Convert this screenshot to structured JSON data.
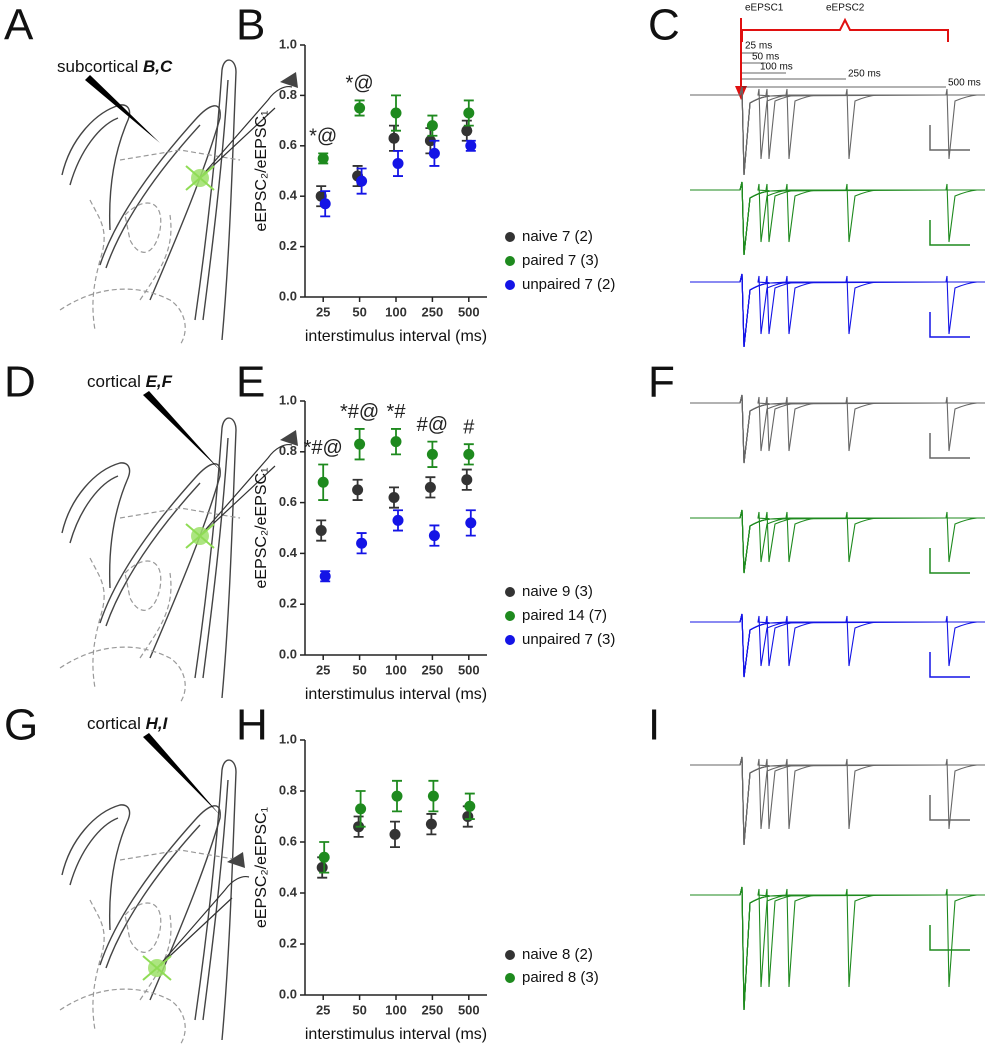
{
  "panels": {
    "letters": [
      "A",
      "B",
      "C",
      "D",
      "E",
      "F",
      "G",
      "H",
      "I"
    ],
    "electrodes": [
      {
        "site": "subcortical",
        "targets": "B,C"
      },
      {
        "site": "cortical",
        "targets": "E,F"
      },
      {
        "site": "cortical",
        "targets": "H,I"
      }
    ],
    "trace_labels": {
      "first": "eEPSC1",
      "second": "eEPSC2",
      "intervals": [
        "25 ms",
        "50 ms",
        "100 ms",
        "250 ms",
        "500 ms"
      ]
    }
  },
  "chart_data": [
    {
      "type": "scatter",
      "categories": [
        "25",
        "50",
        "100",
        "250",
        "500"
      ],
      "xlabel": "interstimulus interval (ms)",
      "ylabel": "eEPSC₂/eEPSC₁",
      "ylim": [
        0,
        1
      ],
      "yticks": [
        {
          "value": 0,
          "label": "0.0"
        },
        0.2,
        0.4,
        0.6,
        0.8,
        {
          "value": 1,
          "label": "1.0"
        }
      ],
      "legend": "lower right",
      "series": [
        {
          "name": "naive 7 (2)",
          "color": "#333333",
          "values": [
            0.4,
            0.48,
            0.63,
            0.62,
            0.66
          ],
          "errors": [
            0.04,
            0.04,
            0.05,
            0.05,
            0.04
          ]
        },
        {
          "name": "paired 7 (3)",
          "color": "#1e8a1e",
          "values": [
            0.55,
            0.75,
            0.73,
            0.68,
            0.73
          ],
          "errors": [
            0.02,
            0.03,
            0.07,
            0.04,
            0.05
          ]
        },
        {
          "name": "unpaired 7 (2)",
          "color": "#1414e6",
          "values": [
            0.37,
            0.46,
            0.53,
            0.57,
            0.6
          ],
          "errors": [
            0.05,
            0.05,
            0.05,
            0.05,
            0.02
          ]
        }
      ],
      "annotations": [
        "*@",
        "*@",
        null,
        null,
        null
      ]
    },
    {
      "type": "scatter",
      "categories": [
        "25",
        "50",
        "100",
        "250",
        "500"
      ],
      "xlabel": "interstimulus interval (ms)",
      "ylabel": "eEPSC₂/eEPSC₁",
      "ylim": [
        0,
        1
      ],
      "yticks": [
        {
          "value": 0,
          "label": "0.0"
        },
        0.2,
        0.4,
        0.6,
        0.8,
        {
          "value": 1,
          "label": "1.0"
        }
      ],
      "legend": "lower right",
      "series": [
        {
          "name": "naive 9 (3)",
          "color": "#333333",
          "values": [
            0.49,
            0.65,
            0.62,
            0.66,
            0.69
          ],
          "errors": [
            0.04,
            0.04,
            0.04,
            0.04,
            0.04
          ]
        },
        {
          "name": "paired 14 (7)",
          "color": "#1e8a1e",
          "values": [
            0.68,
            0.83,
            0.84,
            0.79,
            0.79
          ],
          "errors": [
            0.07,
            0.06,
            0.05,
            0.05,
            0.04
          ]
        },
        {
          "name": "unpaired 7 (3)",
          "color": "#1414e6",
          "values": [
            0.31,
            0.44,
            0.53,
            0.47,
            0.52
          ],
          "errors": [
            0.02,
            0.04,
            0.04,
            0.04,
            0.05
          ]
        }
      ],
      "annotations": [
        "*#@",
        "*#@",
        "*#",
        "#@",
        "#"
      ]
    },
    {
      "type": "scatter",
      "categories": [
        "25",
        "50",
        "100",
        "250",
        "500"
      ],
      "xlabel": "interstimulus interval (ms)",
      "ylabel": "eEPSC₂/eEPSC₁",
      "ylim": [
        0,
        1
      ],
      "yticks": [
        {
          "value": 0,
          "label": "0.0"
        },
        0.2,
        0.4,
        0.6,
        0.8,
        {
          "value": 1,
          "label": "1.0"
        }
      ],
      "legend": "lower right",
      "series": [
        {
          "name": "naive 8 (2)",
          "color": "#333333",
          "values": [
            0.5,
            0.66,
            0.63,
            0.67,
            0.7
          ],
          "errors": [
            0.04,
            0.04,
            0.05,
            0.04,
            0.04
          ]
        },
        {
          "name": "paired 8 (3)",
          "color": "#1e8a1e",
          "values": [
            0.54,
            0.73,
            0.78,
            0.78,
            0.74
          ],
          "errors": [
            0.06,
            0.07,
            0.06,
            0.06,
            0.05
          ]
        }
      ]
    }
  ]
}
